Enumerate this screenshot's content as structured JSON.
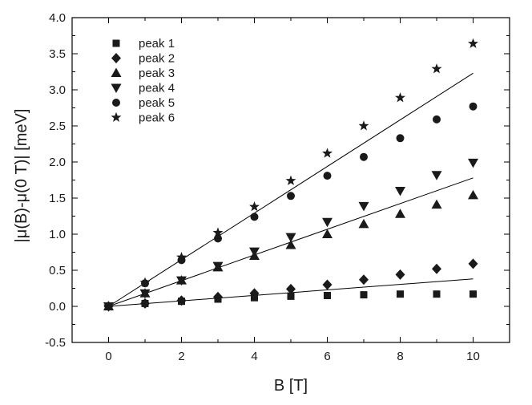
{
  "chart_data": {
    "type": "scatter",
    "xlabel": "B  [T]",
    "ylabel": "|μ(B)-μ(0 T)| [meV]",
    "xlim": [
      -1,
      11
    ],
    "ylim": [
      -0.5,
      4.0
    ],
    "xticks": [
      0,
      2,
      4,
      6,
      8,
      10
    ],
    "yticks": [
      -0.5,
      0.0,
      0.5,
      1.0,
      1.5,
      2.0,
      2.5,
      3.0,
      3.5,
      4.0
    ],
    "ytick_labels": [
      "-0.5",
      "0.0",
      "0.5",
      "1.0",
      "1.5",
      "2.0",
      "2.5",
      "3.0",
      "3.5",
      "4.0"
    ],
    "grid": false,
    "legend_position": "top-left",
    "x": [
      0,
      1,
      2,
      3,
      4,
      5,
      6,
      7,
      8,
      9,
      10
    ],
    "series": [
      {
        "name": "peak 1",
        "marker": "square",
        "values": [
          0,
          0.04,
          0.07,
          0.1,
          0.12,
          0.14,
          0.15,
          0.16,
          0.17,
          0.17,
          0.17
        ]
      },
      {
        "name": "peak 2",
        "marker": "diamond",
        "values": [
          0,
          0.04,
          0.08,
          0.13,
          0.18,
          0.24,
          0.3,
          0.37,
          0.44,
          0.52,
          0.59
        ]
      },
      {
        "name": "peak 3",
        "marker": "triangle-up",
        "values": [
          0,
          0.18,
          0.36,
          0.54,
          0.7,
          0.85,
          1.0,
          1.14,
          1.28,
          1.41,
          1.54
        ]
      },
      {
        "name": "peak 4",
        "marker": "triangle-down",
        "values": [
          0,
          0.18,
          0.36,
          0.56,
          0.76,
          0.96,
          1.17,
          1.39,
          1.6,
          1.82,
          1.99
        ]
      },
      {
        "name": "peak 5",
        "marker": "circle",
        "values": [
          0,
          0.32,
          0.64,
          0.94,
          1.24,
          1.53,
          1.81,
          2.07,
          2.33,
          2.59,
          2.77
        ]
      },
      {
        "name": "peak 6",
        "marker": "star",
        "values": [
          0,
          0.33,
          0.68,
          1.02,
          1.38,
          1.74,
          2.12,
          2.5,
          2.89,
          3.29,
          3.64
        ]
      }
    ],
    "fit_lines": [
      {
        "x": [
          0,
          10
        ],
        "y": [
          0,
          0.38
        ]
      },
      {
        "x": [
          0,
          10
        ],
        "y": [
          0,
          1.78
        ]
      },
      {
        "x": [
          0,
          10
        ],
        "y": [
          0,
          3.23
        ]
      }
    ]
  }
}
